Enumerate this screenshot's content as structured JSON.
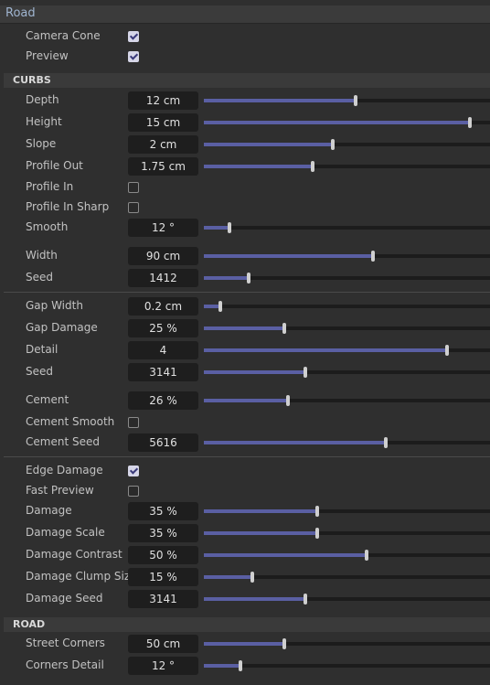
{
  "panel": {
    "title": "Road"
  },
  "top": [
    {
      "label": "Camera Cone",
      "checked": true
    },
    {
      "label": "Preview",
      "checked": true
    }
  ],
  "sections": {
    "curbs": "CURBS",
    "road": "ROAD"
  },
  "curbs": {
    "depth": {
      "label": "Depth",
      "value": "12 cm",
      "level": 0.53
    },
    "height": {
      "label": "Height",
      "value": "15 cm",
      "level": 0.93
    },
    "slope": {
      "label": "Slope",
      "value": "2 cm",
      "level": 0.45
    },
    "profile_out": {
      "label": "Profile Out",
      "value": "1.75 cm",
      "level": 0.38
    },
    "profile_in": {
      "label": "Profile In",
      "checked": false
    },
    "profile_in_sharp": {
      "label": "Profile In Sharp",
      "checked": false
    },
    "smooth": {
      "label": "Smooth",
      "value": "12 °",
      "level": 0.09
    },
    "width": {
      "label": "Width",
      "value": "90 cm",
      "level": 0.59
    },
    "seed": {
      "label": "Seed",
      "value": "1412",
      "level": 0.157
    }
  },
  "gap": {
    "gap_width": {
      "label": "Gap Width",
      "value": "0.2 cm",
      "level": 0.058
    },
    "gap_damage": {
      "label": "Gap Damage",
      "value": "25 %",
      "level": 0.28
    },
    "detail": {
      "label": "Detail",
      "value": "4",
      "level": 0.85
    },
    "seed": {
      "label": "Seed",
      "value": "3141",
      "level": 0.355
    },
    "cement": {
      "label": "Cement",
      "value": "26 %",
      "level": 0.294
    },
    "cement_smooth": {
      "label": "Cement Smooth",
      "checked": false
    },
    "cement_seed": {
      "label": "Cement Seed",
      "value": "5616",
      "level": 0.636
    }
  },
  "damage": {
    "edge_damage": {
      "label": "Edge Damage",
      "checked": true
    },
    "fast_preview": {
      "label": "Fast Preview",
      "checked": false
    },
    "damage": {
      "label": "Damage",
      "value": "35 %",
      "level": 0.396
    },
    "damage_scale": {
      "label": "Damage Scale",
      "value": "35 %",
      "level": 0.396
    },
    "damage_contrast": {
      "label": "Damage Contrast",
      "value": "50 %",
      "level": 0.569
    },
    "damage_clump_size": {
      "label": "Damage Clump Size",
      "value": "15 %",
      "level": 0.169
    },
    "damage_seed": {
      "label": "Damage Seed",
      "value": "3141",
      "level": 0.355
    }
  },
  "road": {
    "street_corners": {
      "label": "Street Corners",
      "value": "50 cm",
      "level": 0.28
    },
    "corners_detail": {
      "label": "Corners Detail",
      "value": "12 °",
      "level": 0.128
    }
  },
  "colors": {
    "slider_fill": "#5a5fa3",
    "panel_bg": "#2f2f2f",
    "field_bg": "#1e1e1e"
  }
}
